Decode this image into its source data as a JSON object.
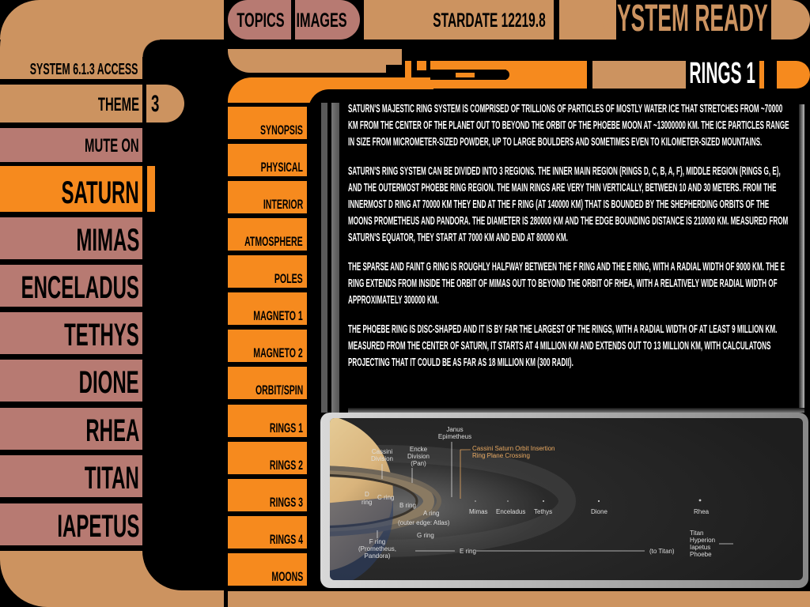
{
  "top_bar": {
    "topics": "TOPICS",
    "images": "IMAGES",
    "stardate": "STARDATE 12219.8",
    "status": "SYSTEM READY"
  },
  "left_panel": {
    "access": "SYSTEM 6.1.3 ACCESS",
    "theme_label": "THEME",
    "theme_value": "3",
    "mute": "MUTE ON",
    "bodies": [
      "SATURN",
      "MIMAS",
      "ENCELADUS",
      "TETHYS",
      "DIONE",
      "RHEA",
      "TITAN",
      "IAPETUS"
    ],
    "selected": "SATURN"
  },
  "topics": {
    "items": [
      "SYNOPSIS",
      "PHYSICAL",
      "INTERIOR",
      "ATMOSPHERE",
      "POLES",
      "MAGNETO 1",
      "MAGNETO 2",
      "ORBIT/SPIN",
      "RINGS 1",
      "RINGS 2",
      "RINGS 3",
      "RINGS 4",
      "MOONS"
    ],
    "selected": "RINGS 1"
  },
  "page_title": "RINGS 1",
  "content": {
    "paragraphs": [
      "SATURN'S MAJESTIC RING SYSTEM IS COMPRISED OF TRILLIONS OF PARTICLES OF MOSTLY WATER ICE THAT STRETCHES FROM ~70000 KM FROM THE CENTER OF THE PLANET OUT TO BEYOND THE ORBIT OF THE PHOEBE MOON AT ~13000000 KM. THE ICE PARTICLES RANGE IN SIZE FROM MICROMETER-SIZED POWDER, UP TO LARGE BOULDERS AND SOMETIMES EVEN TO KILOMETER-SIZED MOUNTAINS.",
      "SATURN'S RING SYSTEM CAN BE DIVIDED INTO 3 REGIONS. THE INNER MAIN REGION (RINGS D, C, B, A, F), MIDDLE REGION (RINGS G, E), AND THE OUTERMOST PHOEBE RING REGION. THE MAIN RINGS ARE VERY THIN VERTICALLY, BETWEEN 10 AND 30 METERS. FROM THE INNERMOST D RING AT 70000 KM THEY END AT THE F RING (AT 140000 KM) THAT IS BOUNDED BY THE SHEPHERDING ORBITS OF THE MOONS PROMETHEUS AND PANDORA. THE DIAMETER IS 280000 KM AND THE EDGE BOUNDING DISTANCE IS 210000 KM. MEASURED FROM SATURN'S EQUATOR, THEY START AT 7000 KM AND END AT 80000 KM.",
      "THE SPARSE AND FAINT G RING IS ROUGHLY HALFWAY BETWEEN THE F RING AND THE E RING, WITH A RADIAL WIDTH OF 9000 KM. THE E RING EXTENDS FROM INSIDE THE ORBIT OF MIMAS OUT TO BEYOND THE ORBIT OF RHEA, WITH A RELATIVELY WIDE RADIAL WIDTH OF APPROXIMATELY 300000 KM.",
      "THE PHOEBE RING IS DISC-SHAPED AND IT IS BY FAR THE LARGEST OF THE RINGS, WITH A RADIAL WIDTH OF AT LEAST 9 MILLION KM. MEASURED FROM THE CENTER OF SATURN, IT STARTS AT 4 MILLION KM AND EXTENDS OUT TO 13 MILLION KM, WITH CALCULATONS PROJECTING THAT IT COULD BE AS FAR AS 18 MILLION KM (300 RADII)."
    ]
  },
  "diagram": {
    "labels": {
      "janus": "Janus",
      "epimetheus": "Epimetheus",
      "cassini1": "Cassini",
      "cassini2": "Division",
      "encke1": "Encke",
      "encke2": "Division",
      "encke3": "(Pan)",
      "soi1": "Cassini Saturn Orbit Insertion",
      "soi2": "Ring Plane Crossing",
      "d1": "D",
      "d2": "ring",
      "c": "C ring",
      "b": "B ring",
      "a1": "A ring",
      "a2": "(outer edge: Atlas)",
      "f1": "F ring",
      "f2": "(Prometheus,",
      "f3": "Pandora)",
      "g": "G ring",
      "e": "E ring",
      "totitan": "(to Titan)",
      "mimas": "Mimas",
      "enceladus": "Enceladus",
      "tethys": "Tethys",
      "dione": "Dione",
      "rhea": "Rhea",
      "titan": "Titan",
      "hyperion": "Hyperion",
      "iapetus": "Iapetus",
      "phoebe": "Phoebe"
    }
  },
  "colors": {
    "tan": "#cc9360",
    "pink": "#b77a72",
    "orange": "#f68a1e",
    "soi": "#e8a860"
  }
}
